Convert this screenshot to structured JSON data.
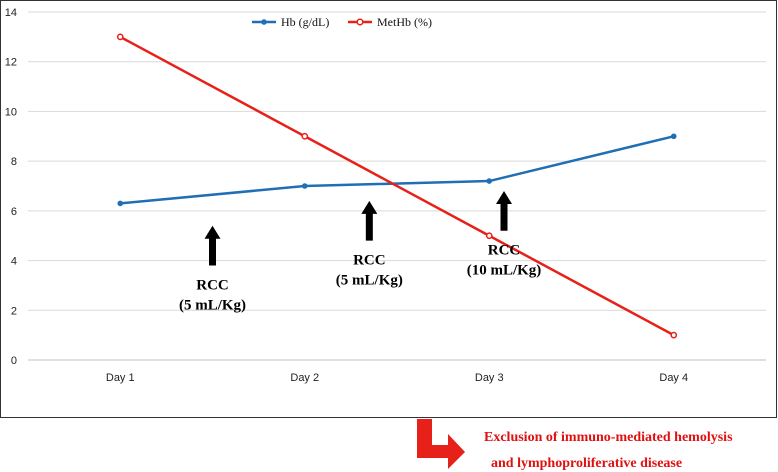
{
  "chart_data": {
    "type": "line",
    "title": "",
    "xlabel": "",
    "ylabel": "",
    "categories": [
      "Day 1",
      "Day 2",
      "Day 3",
      "Day 4"
    ],
    "ylim": [
      0,
      14
    ],
    "yticks": [
      "0",
      "2",
      "4",
      "6",
      "8",
      "10",
      "12",
      "14"
    ],
    "grid": true,
    "legend_position": "top-center",
    "series": [
      {
        "name": "Hb (g/dL)",
        "color": "#1f6fb5",
        "values": [
          6.3,
          7.0,
          7.2,
          9.0
        ]
      },
      {
        "name": "MetHb (%)",
        "color": "#e8201a",
        "values": [
          13.0,
          9.0,
          5.0,
          1.0
        ]
      }
    ],
    "annotations": [
      {
        "line1": "RCC",
        "line2": "(5 mL/Kg)",
        "x": 1.5,
        "arrow_from": 3.8,
        "arrow_to": 5.4
      },
      {
        "line1": "RCC",
        "line2": "(5 mL/Kg)",
        "x": 2.35,
        "arrow_from": 4.8,
        "arrow_to": 6.4
      },
      {
        "line1": "RCC",
        "line2": "(10 mL/Kg)",
        "x": 3.08,
        "arrow_from": 5.2,
        "arrow_to": 6.8
      }
    ]
  },
  "footnote": {
    "line1": "Exclusion of immuno-mediated hemolysis",
    "line2": "and lymphoproliferative disease",
    "color": "#e01010"
  }
}
